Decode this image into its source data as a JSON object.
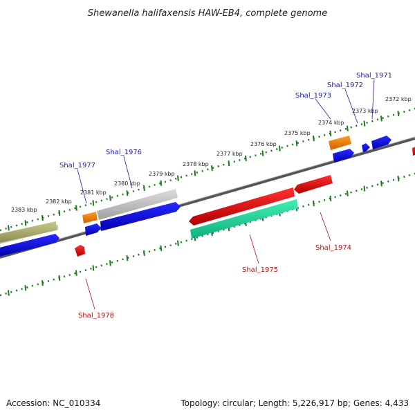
{
  "title": "Shewanella halifaxensis HAW-EB4, complete genome",
  "footer": {
    "accession": "Accession: NC_010334",
    "summary": "Topology: circular; Length: 5,226,917 bp; Genes: 4,433"
  },
  "colors": {
    "backbone": "#777777",
    "tick": "#1e7a1e",
    "forward_label": "#1a1aa6",
    "reverse_label": "#b31010"
  },
  "chart_data": {
    "type": "genome-map",
    "topology": "circular",
    "length_bp": 5226917,
    "gene_count": 4433,
    "scale_labels": [
      "2372 kbp",
      "2373 kbp",
      "2374 kbp",
      "2375 kbp",
      "2376 kbp",
      "2377 kbp",
      "2378 kbp",
      "2379 kbp",
      "2380 kbp",
      "2381 kbp",
      "2382 kbp",
      "2383 kbp"
    ],
    "gene_labels": [
      {
        "name": "Shal_1971",
        "strand": "forward"
      },
      {
        "name": "Shal_1972",
        "strand": "forward"
      },
      {
        "name": "Shal_1973",
        "strand": "forward"
      },
      {
        "name": "Shal_1974",
        "strand": "reverse"
      },
      {
        "name": "Shal_1975",
        "strand": "reverse"
      },
      {
        "name": "Shal_1976",
        "strand": "forward"
      },
      {
        "name": "Shal_1977",
        "strand": "forward"
      },
      {
        "name": "Shal_1978",
        "strand": "reverse"
      }
    ],
    "feature_colors": [
      "#0000ee",
      "#ee1111",
      "#ff8c00",
      "#22e0a0",
      "#b8b878",
      "#c0c0c0"
    ]
  }
}
